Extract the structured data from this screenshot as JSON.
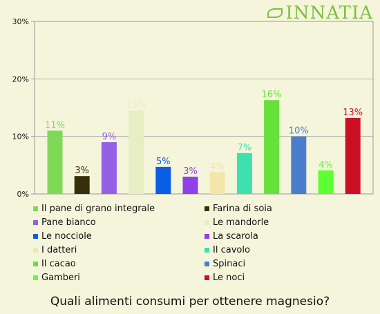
{
  "logo_text": "INNATIA",
  "question": "Quali alimenti consumi per ottenere magnesio?",
  "chart_data": {
    "type": "bar",
    "title": "Quali alimenti consumi per ottenere magnesio?",
    "ylim": [
      0,
      30
    ],
    "yticks": [
      0,
      10,
      20,
      30
    ],
    "ytick_labels": [
      "0%",
      "10%",
      "20%",
      "30%"
    ],
    "grid": true,
    "legend_placement": "bottom",
    "categories": [
      "Il pane di grano integrale",
      "Farina di soia",
      "Pane bianco",
      "Le mandorle",
      "Le nocciole",
      "La scarola",
      "I datteri",
      "Il cavolo",
      "Il cacao",
      "Spinaci",
      "Gamberi",
      "Le noci"
    ],
    "values": [
      11,
      3,
      9,
      15,
      5,
      3,
      4,
      7,
      16,
      10,
      4,
      13
    ],
    "value_labels": [
      "11%",
      "3%",
      "9%",
      "15%",
      "5%",
      "3%",
      "4%",
      "7%",
      "16%",
      "10%",
      "4%",
      "13%"
    ],
    "plot_values": [
      11,
      3.1,
      9,
      14.5,
      4.7,
      3,
      3.8,
      7.1,
      16.3,
      10,
      4.1,
      13.2
    ],
    "colors": [
      "#7ed957",
      "#35300a",
      "#9461e6",
      "#e8eec4",
      "#0a5ee6",
      "#9040e8",
      "#f2e6a8",
      "#3ee0b0",
      "#66e03a",
      "#4a7ecc",
      "#5eff33",
      "#cc1024"
    ]
  }
}
